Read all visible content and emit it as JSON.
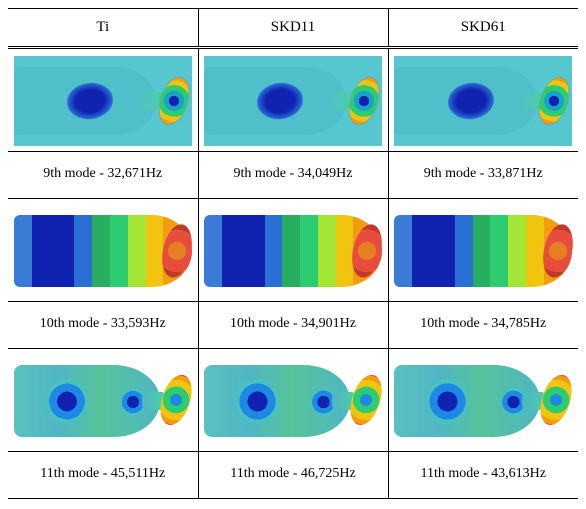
{
  "figure": {
    "type": "table",
    "columns": [
      "Ti",
      "SKD11",
      "SKD61"
    ],
    "rows": [
      {
        "mode": 9,
        "shape_style": "m9",
        "cells": [
          {
            "label": "9th mode - 32,671Hz",
            "freq_hz": 32671
          },
          {
            "label": "9th mode -  34,049Hz",
            "freq_hz": 34049
          },
          {
            "label": "9th mode -  33,871Hz",
            "freq_hz": 33871
          }
        ]
      },
      {
        "mode": 10,
        "shape_style": "m10",
        "band_colors": [
          "#3a7bd5",
          "#1023b0",
          "#1023b0",
          "#2a6fd6",
          "#27ae60",
          "#2ecc71",
          "#a3e635",
          "#f1c40f",
          "#f39c12",
          "#e67e22",
          "#e74c3c"
        ],
        "band_widths": [
          10,
          16,
          8,
          10,
          10,
          10,
          10,
          10,
          8,
          4,
          4
        ],
        "cells": [
          {
            "label": "10th mode -  33,593Hz",
            "freq_hz": 33593
          },
          {
            "label": "10th mode -  34,901Hz",
            "freq_hz": 34901
          },
          {
            "label": "10th mode -  34,785Hz",
            "freq_hz": 34785
          }
        ]
      },
      {
        "mode": 11,
        "shape_style": "m11",
        "cells": [
          {
            "label": "11th mode -  45,511Hz",
            "freq_hz": 45511
          },
          {
            "label": "11th mode -  46,725Hz",
            "freq_hz": 46725
          },
          {
            "label": "11th mode -  43,613Hz",
            "freq_hz": 43613
          }
        ]
      }
    ],
    "colors": {
      "background": "#ffffff",
      "border": "#000000",
      "text": "#000000",
      "cyan_body": "#4fbfc9",
      "deep_blue": "#1023b0"
    },
    "fontsize": {
      "header": 15,
      "label": 14
    }
  }
}
